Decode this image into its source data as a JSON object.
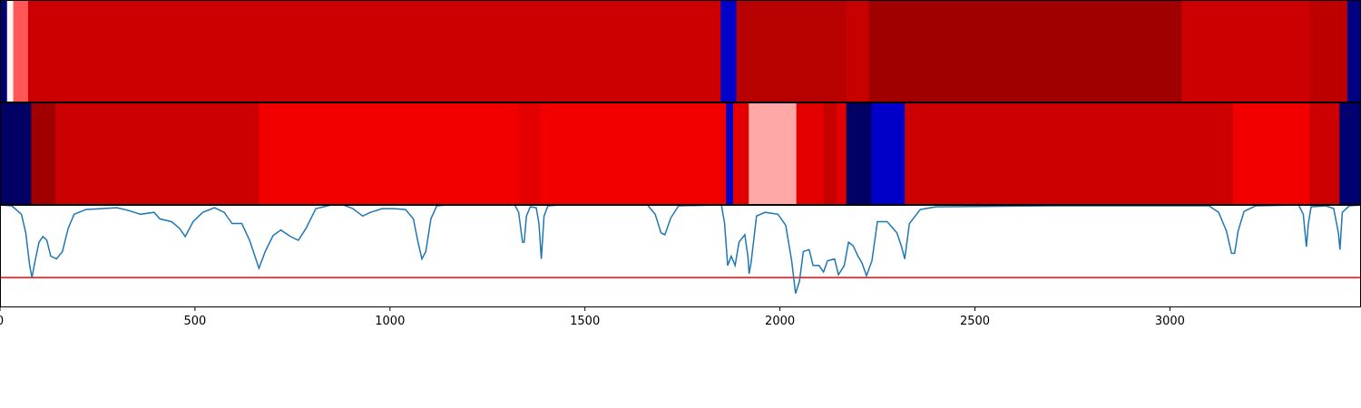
{
  "chart_data": [
    {
      "type": "heatmap",
      "xlim": [
        0,
        3490
      ],
      "colormap": "seismic",
      "value_range": [
        -1,
        1
      ],
      "segments": [
        {
          "start": 0,
          "end": 18,
          "value": -0.9
        },
        {
          "start": 18,
          "end": 34,
          "value": 0.02
        },
        {
          "start": 34,
          "end": 72,
          "value": 0.33
        },
        {
          "start": 72,
          "end": 1848,
          "value": 0.7
        },
        {
          "start": 1848,
          "end": 1888,
          "value": -0.65
        },
        {
          "start": 1888,
          "end": 2170,
          "value": 0.78
        },
        {
          "start": 2170,
          "end": 2228,
          "value": 0.72
        },
        {
          "start": 2228,
          "end": 3030,
          "value": 0.87
        },
        {
          "start": 3030,
          "end": 3358,
          "value": 0.7
        },
        {
          "start": 3358,
          "end": 3455,
          "value": 0.76
        },
        {
          "start": 3455,
          "end": 3490,
          "value": -0.85
        }
      ]
    },
    {
      "type": "heatmap",
      "xlim": [
        0,
        3490
      ],
      "colormap": "seismic",
      "value_range": [
        -1,
        1
      ],
      "segments": [
        {
          "start": 0,
          "end": 80,
          "value": -0.93
        },
        {
          "start": 80,
          "end": 142,
          "value": 0.87
        },
        {
          "start": 142,
          "end": 664,
          "value": 0.7
        },
        {
          "start": 664,
          "end": 1330,
          "value": 0.55
        },
        {
          "start": 1330,
          "end": 1385,
          "value": 0.6
        },
        {
          "start": 1385,
          "end": 1862,
          "value": 0.55
        },
        {
          "start": 1862,
          "end": 1880,
          "value": -0.65
        },
        {
          "start": 1880,
          "end": 1920,
          "value": 0.6
        },
        {
          "start": 1920,
          "end": 2042,
          "value": 0.17
        },
        {
          "start": 2042,
          "end": 2112,
          "value": 0.6
        },
        {
          "start": 2112,
          "end": 2145,
          "value": 0.72
        },
        {
          "start": 2145,
          "end": 2170,
          "value": 0.6
        },
        {
          "start": 2170,
          "end": 2235,
          "value": -0.93
        },
        {
          "start": 2235,
          "end": 2320,
          "value": -0.65
        },
        {
          "start": 2320,
          "end": 3162,
          "value": 0.7
        },
        {
          "start": 3162,
          "end": 3358,
          "value": 0.55
        },
        {
          "start": 3358,
          "end": 3435,
          "value": 0.7
        },
        {
          "start": 3435,
          "end": 3490,
          "value": -0.9
        }
      ]
    },
    {
      "type": "line",
      "xlim": [
        0,
        3490
      ],
      "ylim": [
        -0.1,
        1.0
      ],
      "xticks": [
        0,
        500,
        1000,
        1500,
        2000,
        2500,
        3000
      ],
      "threshold": {
        "y": 0.22,
        "color": "#ff0000"
      },
      "series": [
        {
          "color": "#1f77b4",
          "points": [
            [
              0,
              1.0
            ],
            [
              30,
              0.99
            ],
            [
              55,
              0.9
            ],
            [
              66,
              0.7
            ],
            [
              76,
              0.35
            ],
            [
              82,
              0.22
            ],
            [
              90,
              0.4
            ],
            [
              100,
              0.6
            ],
            [
              110,
              0.66
            ],
            [
              120,
              0.62
            ],
            [
              130,
              0.45
            ],
            [
              145,
              0.42
            ],
            [
              160,
              0.5
            ],
            [
              175,
              0.75
            ],
            [
              190,
              0.9
            ],
            [
              220,
              0.95
            ],
            [
              260,
              0.96
            ],
            [
              300,
              0.97
            ],
            [
              330,
              0.94
            ],
            [
              360,
              0.9
            ],
            [
              395,
              0.92
            ],
            [
              410,
              0.85
            ],
            [
              440,
              0.82
            ],
            [
              460,
              0.75
            ],
            [
              475,
              0.66
            ],
            [
              495,
              0.82
            ],
            [
              520,
              0.92
            ],
            [
              550,
              0.97
            ],
            [
              575,
              0.92
            ],
            [
              595,
              0.8
            ],
            [
              620,
              0.8
            ],
            [
              640,
              0.62
            ],
            [
              664,
              0.32
            ],
            [
              680,
              0.5
            ],
            [
              700,
              0.67
            ],
            [
              720,
              0.73
            ],
            [
              745,
              0.66
            ],
            [
              765,
              0.62
            ],
            [
              785,
              0.75
            ],
            [
              810,
              0.96
            ],
            [
              850,
              1.0
            ],
            [
              880,
              1.0
            ],
            [
              905,
              0.96
            ],
            [
              930,
              0.88
            ],
            [
              950,
              0.92
            ],
            [
              980,
              0.96
            ],
            [
              1010,
              0.96
            ],
            [
              1040,
              0.95
            ],
            [
              1060,
              0.85
            ],
            [
              1072,
              0.6
            ],
            [
              1082,
              0.42
            ],
            [
              1092,
              0.5
            ],
            [
              1105,
              0.85
            ],
            [
              1120,
              0.99
            ],
            [
              1150,
              1.0
            ],
            [
              1320,
              1.0
            ],
            [
              1330,
              0.92
            ],
            [
              1340,
              0.6
            ],
            [
              1344,
              0.6
            ],
            [
              1350,
              0.88
            ],
            [
              1360,
              0.98
            ],
            [
              1375,
              0.97
            ],
            [
              1382,
              0.8
            ],
            [
              1388,
              0.42
            ],
            [
              1395,
              0.88
            ],
            [
              1405,
              0.99
            ],
            [
              1440,
              1.0
            ],
            [
              1660,
              1.0
            ],
            [
              1680,
              0.9
            ],
            [
              1695,
              0.7
            ],
            [
              1705,
              0.68
            ],
            [
              1720,
              0.86
            ],
            [
              1740,
              0.99
            ],
            [
              1850,
              1.0
            ],
            [
              1858,
              0.8
            ],
            [
              1866,
              0.35
            ],
            [
              1875,
              0.45
            ],
            [
              1885,
              0.35
            ],
            [
              1895,
              0.6
            ],
            [
              1910,
              0.68
            ],
            [
              1918,
              0.44
            ],
            [
              1921,
              0.26
            ],
            [
              1926,
              0.38
            ],
            [
              1940,
              0.88
            ],
            [
              1962,
              0.92
            ],
            [
              1995,
              0.9
            ],
            [
              2015,
              0.78
            ],
            [
              2030,
              0.4
            ],
            [
              2040,
              0.05
            ],
            [
              2050,
              0.18
            ],
            [
              2060,
              0.5
            ],
            [
              2075,
              0.52
            ],
            [
              2085,
              0.35
            ],
            [
              2100,
              0.35
            ],
            [
              2112,
              0.28
            ],
            [
              2122,
              0.4
            ],
            [
              2140,
              0.42
            ],
            [
              2150,
              0.25
            ],
            [
              2165,
              0.35
            ],
            [
              2176,
              0.6
            ],
            [
              2188,
              0.56
            ],
            [
              2200,
              0.45
            ],
            [
              2210,
              0.38
            ],
            [
              2222,
              0.24
            ],
            [
              2236,
              0.4
            ],
            [
              2250,
              0.82
            ],
            [
              2275,
              0.82
            ],
            [
              2300,
              0.7
            ],
            [
              2312,
              0.55
            ],
            [
              2320,
              0.42
            ],
            [
              2332,
              0.8
            ],
            [
              2360,
              0.95
            ],
            [
              2400,
              0.98
            ],
            [
              2700,
              0.99
            ],
            [
              3100,
              0.99
            ],
            [
              3125,
              0.92
            ],
            [
              3145,
              0.72
            ],
            [
              3158,
              0.48
            ],
            [
              3166,
              0.48
            ],
            [
              3175,
              0.72
            ],
            [
              3190,
              0.93
            ],
            [
              3220,
              0.99
            ],
            [
              3330,
              1.0
            ],
            [
              3342,
              0.9
            ],
            [
              3350,
              0.55
            ],
            [
              3355,
              0.8
            ],
            [
              3362,
              0.98
            ],
            [
              3400,
              0.99
            ],
            [
              3420,
              0.96
            ],
            [
              3432,
              0.7
            ],
            [
              3436,
              0.52
            ],
            [
              3442,
              0.92
            ],
            [
              3460,
              0.99
            ],
            [
              3490,
              1.0
            ]
          ]
        }
      ]
    }
  ]
}
